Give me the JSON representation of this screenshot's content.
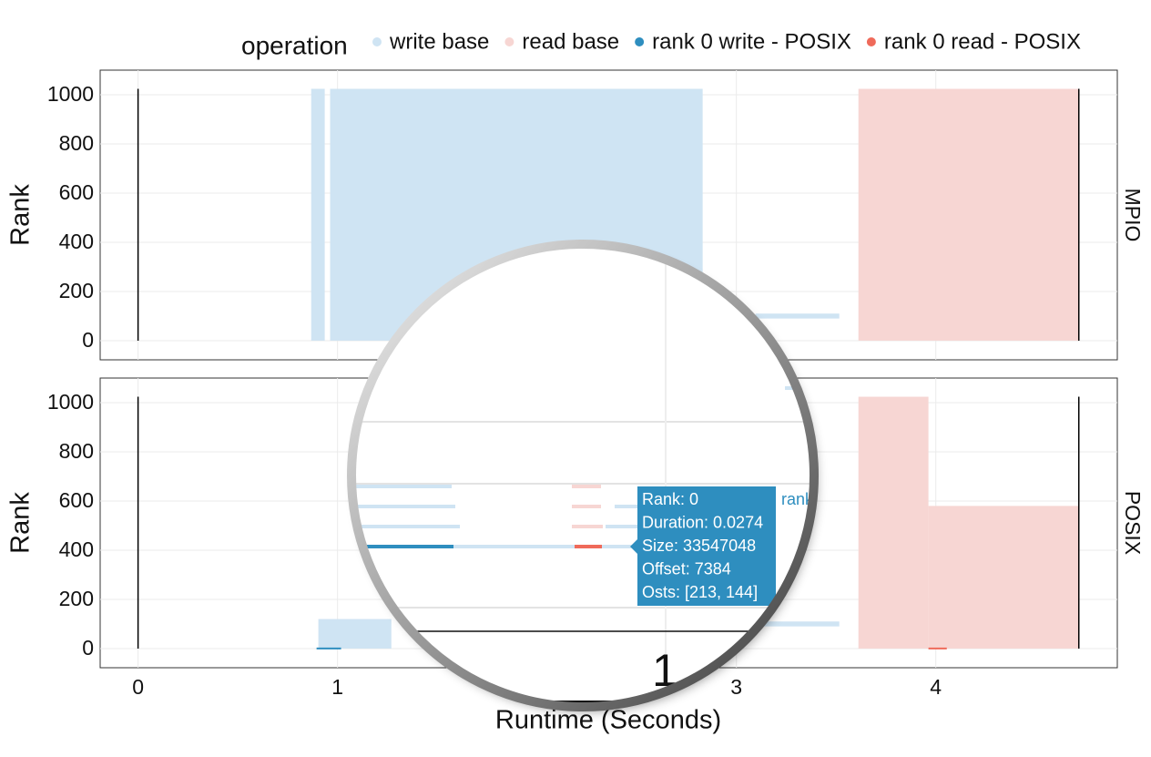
{
  "chart_data": {
    "type": "gantt",
    "legend_title": "operation",
    "series": [
      {
        "name": "write base",
        "color": "#cfe4f3"
      },
      {
        "name": "read base",
        "color": "#f7d6d3"
      },
      {
        "name": "rank 0 write - POSIX",
        "color": "#2e8ebf"
      },
      {
        "name": "rank 0 read - POSIX",
        "color": "#ef6a5a"
      }
    ],
    "xlabel": "Runtime (Seconds)",
    "ylabel": "Rank",
    "xlim": [
      -0.19,
      4.91
    ],
    "xticks": [
      0,
      1,
      3,
      4
    ],
    "ylim": [
      -78,
      1100
    ],
    "yticks": [
      0,
      200,
      400,
      600,
      800,
      1000
    ],
    "grid": true,
    "run_bounds": [
      0,
      4.717
    ],
    "facets": [
      {
        "label": "MPIO",
        "spans": [
          {
            "series": 0,
            "x": [
              0.868,
              0.936
            ],
            "ranks": [
              0,
              1024
            ]
          },
          {
            "series": 0,
            "x": [
              0.963,
              2.831
            ],
            "ranks": [
              0,
              1024
            ]
          },
          {
            "series": 0,
            "x": [
              3.096,
              3.516
            ],
            "ranks": [
              90,
              110
            ]
          },
          {
            "series": 1,
            "x": [
              3.612,
              4.717
            ],
            "ranks": [
              0,
              1024
            ]
          }
        ]
      },
      {
        "label": "POSIX",
        "spans": [
          {
            "series": 0,
            "x": [
              0.904,
              1.27
            ],
            "ranks": [
              0,
              120
            ]
          },
          {
            "series": 0,
            "x": [
              3.096,
              3.516
            ],
            "ranks": [
              90,
              110
            ]
          },
          {
            "series": 1,
            "x": [
              3.612,
              3.963
            ],
            "ranks": [
              0,
              1024
            ]
          },
          {
            "series": 1,
            "x": [
              3.963,
              4.717
            ],
            "ranks": [
              0,
              580
            ]
          },
          {
            "series": 2,
            "x": [
              0.895,
              1.018
            ],
            "ranks": [
              0,
              4
            ]
          },
          {
            "series": 3,
            "x": [
              3.963,
              4.055
            ],
            "ranks": [
              0,
              4
            ]
          }
        ]
      }
    ],
    "magnifier": {
      "tick_label": "1",
      "partial_label": "rank"
    },
    "tooltip": {
      "lines": [
        "Rank: 0",
        "Duration: 0.0274",
        "Size: 33547048",
        "Offset: 7384",
        "Osts: [213, 144]"
      ]
    }
  }
}
